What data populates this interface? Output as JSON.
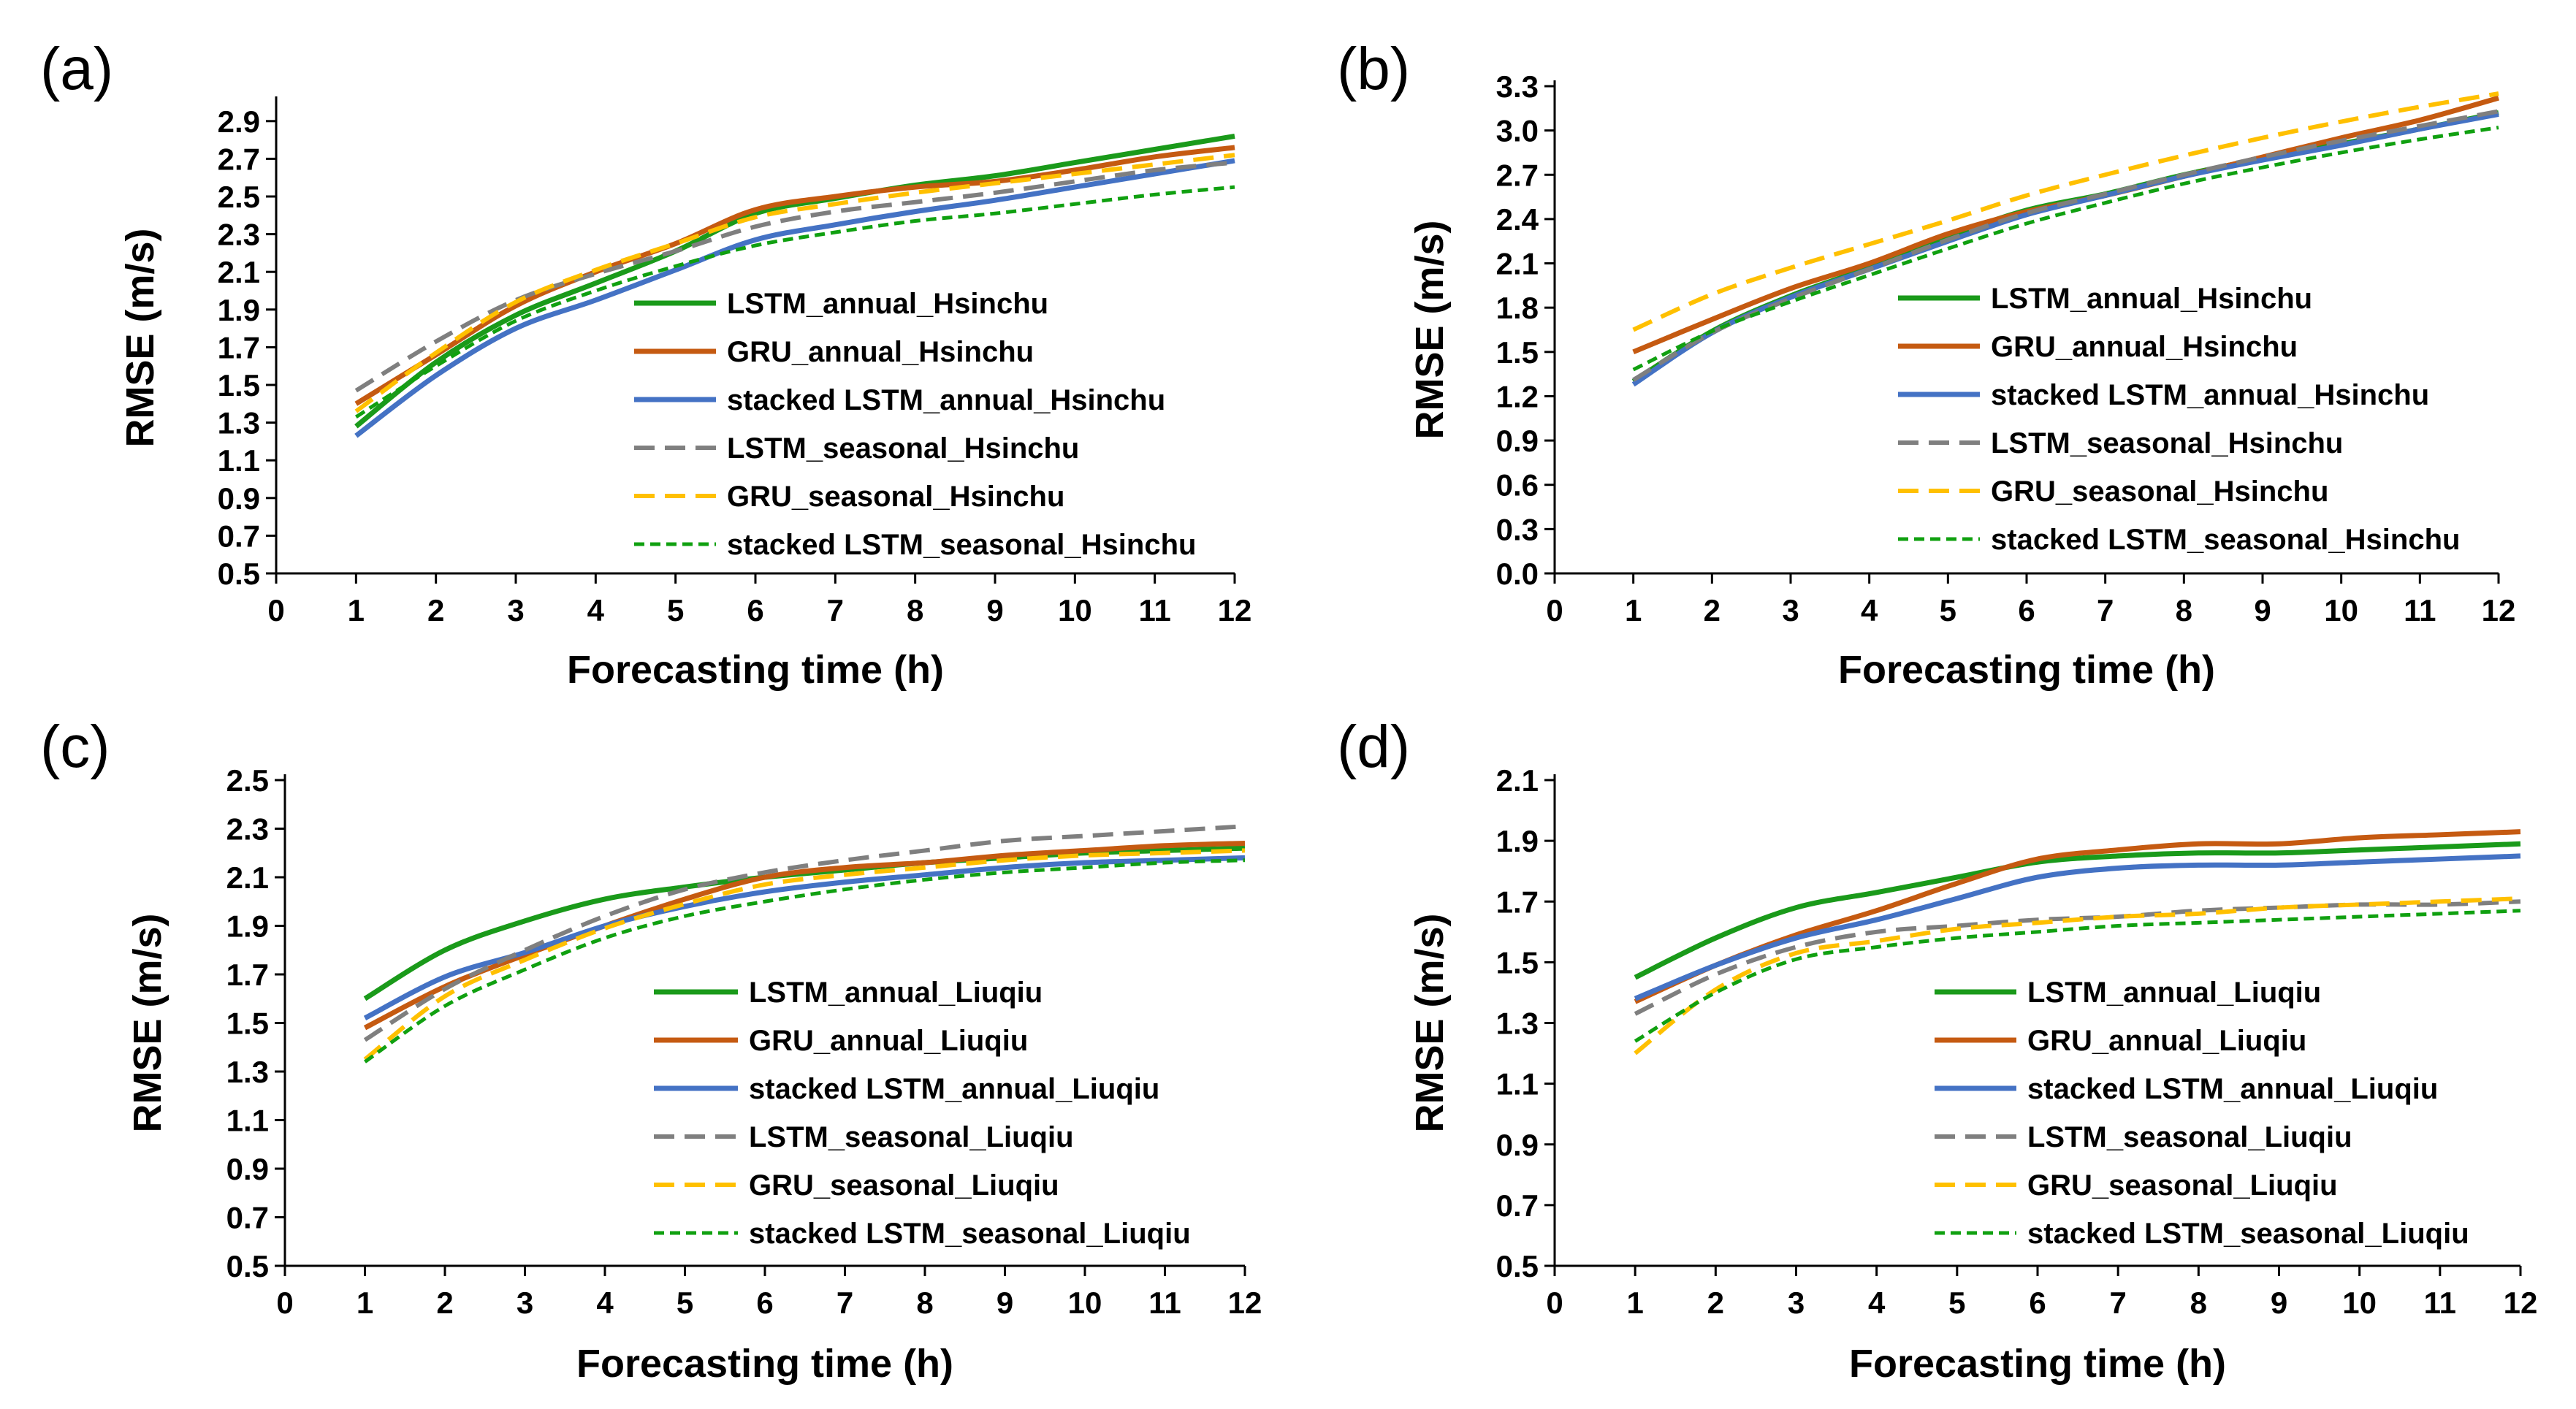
{
  "colors": {
    "green": "#1a9a1a",
    "orange": "#c55a11",
    "blue": "#4472c4",
    "gray": "#7f7f7f",
    "yellow": "#ffc000",
    "darkgreen": "#10a010"
  },
  "chart_data": [
    {
      "label": "(a)",
      "type": "line",
      "xlabel": "Forecasting time (h)",
      "ylabel": "RMSE (m/s)",
      "xlim": [
        0,
        12
      ],
      "ylim": [
        0.5,
        3.0
      ],
      "xticks": [
        "0",
        "1",
        "2",
        "3",
        "4",
        "5",
        "6",
        "7",
        "8",
        "9",
        "10",
        "11",
        "12"
      ],
      "yticks": [
        "0.5",
        "0.7",
        "0.9",
        "1.1",
        "1.3",
        "1.5",
        "1.7",
        "1.9",
        "2.1",
        "2.3",
        "2.5",
        "2.7",
        "2.9"
      ],
      "legend_position": "center-right",
      "x": [
        1,
        2,
        3,
        4,
        5,
        6,
        7,
        8,
        9,
        10,
        11,
        12
      ],
      "series": [
        {
          "name": "LSTM_annual_Hsinchu",
          "color": "green",
          "dash": "solid",
          "values": [
            1.28,
            1.62,
            1.87,
            2.04,
            2.21,
            2.41,
            2.49,
            2.56,
            2.61,
            2.68,
            2.75,
            2.82
          ]
        },
        {
          "name": "GRU_annual_Hsinchu",
          "color": "orange",
          "dash": "solid",
          "values": [
            1.4,
            1.66,
            1.92,
            2.1,
            2.25,
            2.43,
            2.5,
            2.55,
            2.58,
            2.64,
            2.71,
            2.76
          ]
        },
        {
          "name": "stacked LSTM_annual_Hsinchu",
          "color": "blue",
          "dash": "solid",
          "values": [
            1.23,
            1.55,
            1.8,
            1.95,
            2.11,
            2.27,
            2.35,
            2.42,
            2.48,
            2.55,
            2.62,
            2.69
          ]
        },
        {
          "name": "LSTM_seasonal_Hsinchu",
          "color": "gray",
          "dash": "long",
          "values": [
            1.47,
            1.73,
            1.95,
            2.09,
            2.21,
            2.34,
            2.42,
            2.47,
            2.52,
            2.58,
            2.64,
            2.68
          ]
        },
        {
          "name": "GRU_seasonal_Hsinchu",
          "color": "yellow",
          "dash": "long",
          "values": [
            1.36,
            1.67,
            1.94,
            2.11,
            2.25,
            2.39,
            2.46,
            2.52,
            2.57,
            2.62,
            2.67,
            2.72
          ]
        },
        {
          "name": "stacked LSTM_seasonal_Hsinchu",
          "color": "darkgreen",
          "dash": "short",
          "values": [
            1.33,
            1.6,
            1.84,
            2.0,
            2.13,
            2.24,
            2.31,
            2.37,
            2.41,
            2.46,
            2.51,
            2.55
          ]
        }
      ]
    },
    {
      "label": "(b)",
      "type": "line",
      "xlabel": "Forecasting time (h)",
      "ylabel": "RMSE (m/s)",
      "xlim": [
        0,
        12
      ],
      "ylim": [
        0.0,
        3.3
      ],
      "xticks": [
        "0",
        "1",
        "2",
        "3",
        "4",
        "5",
        "6",
        "7",
        "8",
        "9",
        "10",
        "11",
        "12"
      ],
      "yticks": [
        "0.0",
        "0.3",
        "0.6",
        "0.9",
        "1.2",
        "1.5",
        "1.8",
        "2.1",
        "2.4",
        "2.7",
        "3.0",
        "3.3"
      ],
      "legend_position": "center-right",
      "x": [
        1,
        2,
        3,
        4,
        5,
        6,
        7,
        8,
        9,
        10,
        11,
        12
      ],
      "series": [
        {
          "name": "LSTM_annual_Hsinchu",
          "color": "green",
          "dash": "solid",
          "values": [
            1.3,
            1.64,
            1.88,
            2.07,
            2.28,
            2.46,
            2.57,
            2.7,
            2.81,
            2.91,
            3.01,
            3.12
          ]
        },
        {
          "name": "GRU_annual_Hsinchu",
          "color": "orange",
          "dash": "solid",
          "values": [
            1.5,
            1.72,
            1.93,
            2.1,
            2.3,
            2.45,
            2.56,
            2.69,
            2.82,
            2.95,
            3.07,
            3.22
          ]
        },
        {
          "name": "stacked LSTM_annual_Hsinchu",
          "color": "blue",
          "dash": "solid",
          "values": [
            1.28,
            1.63,
            1.87,
            2.06,
            2.25,
            2.43,
            2.56,
            2.69,
            2.8,
            2.9,
            3.01,
            3.11
          ]
        },
        {
          "name": "LSTM_seasonal_Hsinchu",
          "color": "gray",
          "dash": "long",
          "values": [
            1.31,
            1.63,
            1.86,
            2.06,
            2.26,
            2.44,
            2.57,
            2.7,
            2.82,
            2.93,
            3.03,
            3.13
          ]
        },
        {
          "name": "GRU_seasonal_Hsinchu",
          "color": "yellow",
          "dash": "long",
          "values": [
            1.65,
            1.89,
            2.07,
            2.23,
            2.39,
            2.56,
            2.7,
            2.83,
            2.95,
            3.06,
            3.16,
            3.25
          ]
        },
        {
          "name": "stacked LSTM_seasonal_Hsinchu",
          "color": "darkgreen",
          "dash": "short",
          "values": [
            1.38,
            1.64,
            1.84,
            2.02,
            2.2,
            2.37,
            2.51,
            2.64,
            2.75,
            2.85,
            2.94,
            3.02
          ]
        }
      ]
    },
    {
      "label": "(c)",
      "type": "line",
      "xlabel": "Forecasting time (h)",
      "ylabel": "RMSE (m/s)",
      "xlim": [
        0,
        12
      ],
      "ylim": [
        0.5,
        2.5
      ],
      "xticks": [
        "0",
        "1",
        "2",
        "3",
        "4",
        "5",
        "6",
        "7",
        "8",
        "9",
        "10",
        "11",
        "12"
      ],
      "yticks": [
        "0.5",
        "0.7",
        "0.9",
        "1.1",
        "1.3",
        "1.5",
        "1.7",
        "1.9",
        "2.1",
        "2.3",
        "2.5"
      ],
      "legend_position": "center-right",
      "x": [
        1,
        2,
        3,
        4,
        5,
        6,
        7,
        8,
        9,
        10,
        11,
        12
      ],
      "series": [
        {
          "name": "LSTM_annual_Liuqiu",
          "color": "green",
          "dash": "solid",
          "values": [
            1.6,
            1.8,
            1.92,
            2.01,
            2.06,
            2.1,
            2.13,
            2.16,
            2.18,
            2.2,
            2.21,
            2.22
          ]
        },
        {
          "name": "GRU_annual_Liuqiu",
          "color": "orange",
          "dash": "solid",
          "values": [
            1.48,
            1.65,
            1.78,
            1.9,
            2.01,
            2.1,
            2.14,
            2.16,
            2.19,
            2.21,
            2.23,
            2.24
          ]
        },
        {
          "name": "stacked LSTM_annual_Liuqiu",
          "color": "blue",
          "dash": "solid",
          "values": [
            1.52,
            1.69,
            1.79,
            1.9,
            1.98,
            2.04,
            2.08,
            2.11,
            2.14,
            2.16,
            2.17,
            2.18
          ]
        },
        {
          "name": "LSTM_seasonal_Liuqiu",
          "color": "gray",
          "dash": "long",
          "values": [
            1.43,
            1.64,
            1.8,
            1.94,
            2.05,
            2.12,
            2.17,
            2.21,
            2.25,
            2.27,
            2.29,
            2.31
          ]
        },
        {
          "name": "GRU_seasonal_Liuqiu",
          "color": "yellow",
          "dash": "long",
          "values": [
            1.35,
            1.61,
            1.76,
            1.89,
            1.99,
            2.07,
            2.11,
            2.14,
            2.17,
            2.19,
            2.2,
            2.21
          ]
        },
        {
          "name": "stacked LSTM_seasonal_Liuqiu",
          "color": "darkgreen",
          "dash": "short",
          "values": [
            1.34,
            1.57,
            1.72,
            1.85,
            1.94,
            2.0,
            2.05,
            2.09,
            2.12,
            2.14,
            2.16,
            2.17
          ]
        }
      ]
    },
    {
      "label": "(d)",
      "type": "line",
      "xlabel": "Forecasting time (h)",
      "ylabel": "RMSE (m/s)",
      "xlim": [
        0,
        12
      ],
      "ylim": [
        0.5,
        2.1
      ],
      "xticks": [
        "0",
        "1",
        "2",
        "3",
        "4",
        "5",
        "6",
        "7",
        "8",
        "9",
        "10",
        "11",
        "12"
      ],
      "yticks": [
        "0.5",
        "0.7",
        "0.9",
        "1.1",
        "1.3",
        "1.5",
        "1.7",
        "1.9",
        "2.1"
      ],
      "legend_position": "bottom-right",
      "x": [
        1,
        2,
        3,
        4,
        5,
        6,
        7,
        8,
        9,
        10,
        11,
        12
      ],
      "series": [
        {
          "name": "LSTM_annual_Liuqiu",
          "color": "green",
          "dash": "solid",
          "values": [
            1.45,
            1.58,
            1.68,
            1.73,
            1.78,
            1.83,
            1.85,
            1.86,
            1.86,
            1.87,
            1.88,
            1.89
          ]
        },
        {
          "name": "GRU_annual_Liuqiu",
          "color": "orange",
          "dash": "solid",
          "values": [
            1.37,
            1.49,
            1.59,
            1.67,
            1.76,
            1.84,
            1.87,
            1.89,
            1.89,
            1.91,
            1.92,
            1.93
          ]
        },
        {
          "name": "stacked LSTM_annual_Liuqiu",
          "color": "blue",
          "dash": "solid",
          "values": [
            1.38,
            1.49,
            1.58,
            1.64,
            1.71,
            1.78,
            1.81,
            1.82,
            1.82,
            1.83,
            1.84,
            1.85
          ]
        },
        {
          "name": "LSTM_seasonal_Liuqiu",
          "color": "gray",
          "dash": "long",
          "values": [
            1.33,
            1.46,
            1.55,
            1.6,
            1.62,
            1.64,
            1.65,
            1.67,
            1.68,
            1.69,
            1.69,
            1.7
          ]
        },
        {
          "name": "GRU_seasonal_Liuqiu",
          "color": "yellow",
          "dash": "long",
          "values": [
            1.2,
            1.41,
            1.53,
            1.57,
            1.61,
            1.63,
            1.65,
            1.66,
            1.68,
            1.69,
            1.7,
            1.71
          ]
        },
        {
          "name": "stacked LSTM_seasonal_Liuqiu",
          "color": "darkgreen",
          "dash": "short",
          "values": [
            1.24,
            1.4,
            1.51,
            1.55,
            1.58,
            1.6,
            1.62,
            1.63,
            1.64,
            1.65,
            1.66,
            1.67
          ]
        }
      ]
    }
  ]
}
